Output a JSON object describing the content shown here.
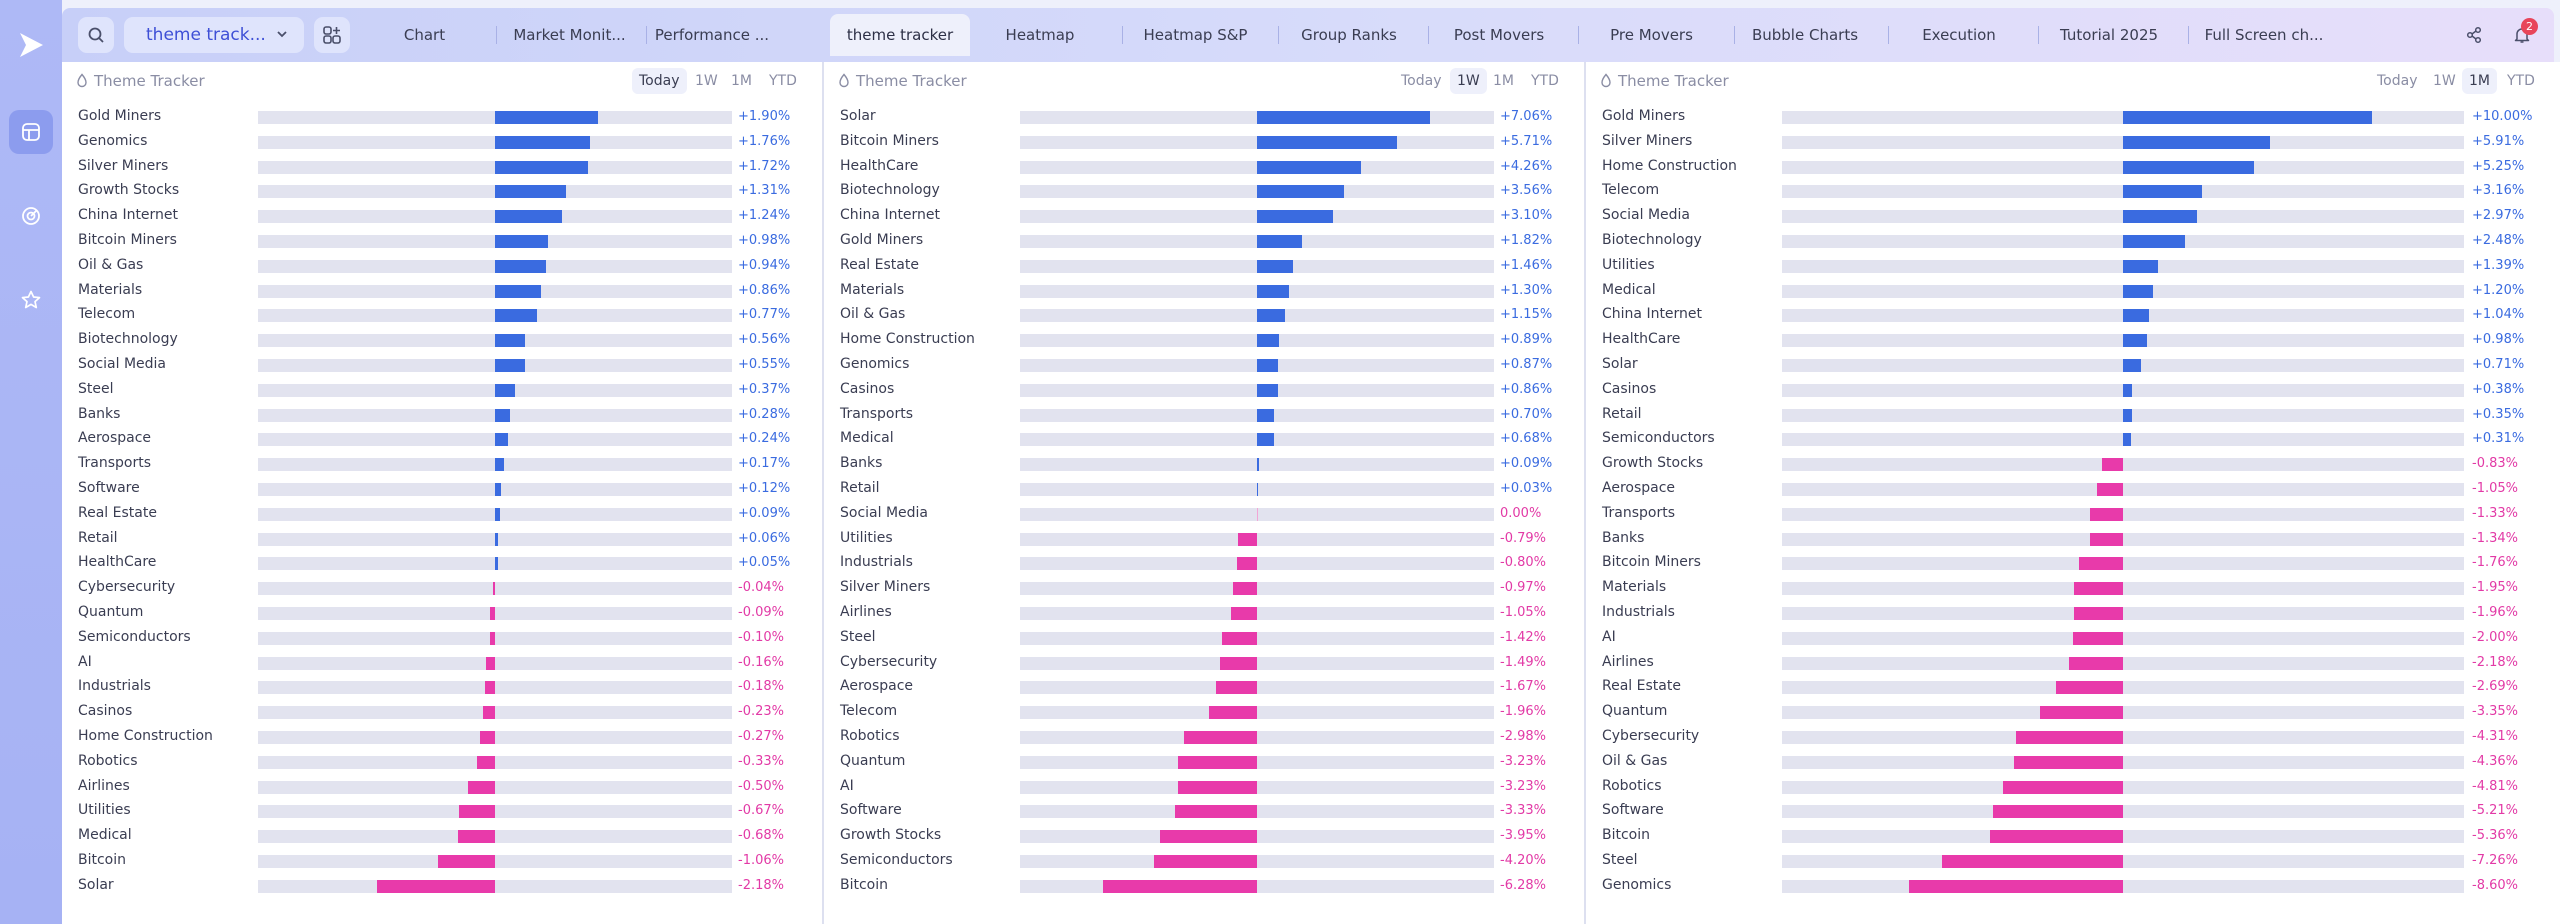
{
  "toolbar": {
    "workspace": "theme track...",
    "tabs": [
      "Chart",
      "Market Monit...",
      "Performance ...",
      "theme tracker",
      "Heatmap",
      "Heatmap S&P",
      "Group Ranks",
      "Post Movers",
      "Pre Movers",
      "Bubble Charts",
      "Execution",
      "Tutorial 2025",
      "Full Screen ch..."
    ],
    "active_tab": "theme tracker",
    "notification_count": "2",
    "accent": "#3e4fd6"
  },
  "colors": {
    "positive": "#3a6be0",
    "negative": "#e83aaa"
  },
  "panels": [
    {
      "title": "Theme Tracker",
      "periods": [
        "Today",
        "1W",
        "1M",
        "YTD"
      ],
      "selected_period": "Today",
      "scale": 3.2,
      "rows": [
        {
          "name": "Gold Miners",
          "value": 1.9,
          "label": "+1.90%"
        },
        {
          "name": "Genomics",
          "value": 1.76,
          "label": "+1.76%"
        },
        {
          "name": "Silver Miners",
          "value": 1.72,
          "label": "+1.72%"
        },
        {
          "name": "Growth Stocks",
          "value": 1.31,
          "label": "+1.31%"
        },
        {
          "name": "China Internet",
          "value": 1.24,
          "label": "+1.24%"
        },
        {
          "name": "Bitcoin Miners",
          "value": 0.98,
          "label": "+0.98%"
        },
        {
          "name": "Oil & Gas",
          "value": 0.94,
          "label": "+0.94%"
        },
        {
          "name": "Materials",
          "value": 0.86,
          "label": "+0.86%"
        },
        {
          "name": "Telecom",
          "value": 0.77,
          "label": "+0.77%"
        },
        {
          "name": "Biotechnology",
          "value": 0.56,
          "label": "+0.56%"
        },
        {
          "name": "Social Media",
          "value": 0.55,
          "label": "+0.55%"
        },
        {
          "name": "Steel",
          "value": 0.37,
          "label": "+0.37%"
        },
        {
          "name": "Banks",
          "value": 0.28,
          "label": "+0.28%"
        },
        {
          "name": "Aerospace",
          "value": 0.24,
          "label": "+0.24%"
        },
        {
          "name": "Transports",
          "value": 0.17,
          "label": "+0.17%"
        },
        {
          "name": "Software",
          "value": 0.12,
          "label": "+0.12%"
        },
        {
          "name": "Real Estate",
          "value": 0.09,
          "label": "+0.09%"
        },
        {
          "name": "Retail",
          "value": 0.06,
          "label": "+0.06%"
        },
        {
          "name": "HealthCare",
          "value": 0.05,
          "label": "+0.05%"
        },
        {
          "name": "Cybersecurity",
          "value": -0.04,
          "label": "-0.04%"
        },
        {
          "name": "Quantum",
          "value": -0.09,
          "label": "-0.09%"
        },
        {
          "name": "Semiconductors",
          "value": -0.1,
          "label": "-0.10%"
        },
        {
          "name": "AI",
          "value": -0.16,
          "label": "-0.16%"
        },
        {
          "name": "Industrials",
          "value": -0.18,
          "label": "-0.18%"
        },
        {
          "name": "Casinos",
          "value": -0.23,
          "label": "-0.23%"
        },
        {
          "name": "Home Construction",
          "value": -0.27,
          "label": "-0.27%"
        },
        {
          "name": "Robotics",
          "value": -0.33,
          "label": "-0.33%"
        },
        {
          "name": "Airlines",
          "value": -0.5,
          "label": "-0.50%"
        },
        {
          "name": "Utilities",
          "value": -0.67,
          "label": "-0.67%"
        },
        {
          "name": "Medical",
          "value": -0.68,
          "label": "-0.68%"
        },
        {
          "name": "Bitcoin",
          "value": -1.06,
          "label": "-1.06%"
        },
        {
          "name": "Solar",
          "value": -2.18,
          "label": "-2.18%"
        }
      ]
    },
    {
      "title": "Theme Tracker",
      "periods": [
        "Today",
        "1W",
        "1M",
        "YTD"
      ],
      "selected_period": "1W",
      "scale": 7.06,
      "rows": [
        {
          "name": "Solar",
          "value": 7.06,
          "label": "+7.06%"
        },
        {
          "name": "Bitcoin Miners",
          "value": 5.71,
          "label": "+5.71%"
        },
        {
          "name": "HealthCare",
          "value": 4.26,
          "label": "+4.26%"
        },
        {
          "name": "Biotechnology",
          "value": 3.56,
          "label": "+3.56%"
        },
        {
          "name": "China Internet",
          "value": 3.1,
          "label": "+3.10%"
        },
        {
          "name": "Gold Miners",
          "value": 1.82,
          "label": "+1.82%"
        },
        {
          "name": "Real Estate",
          "value": 1.46,
          "label": "+1.46%"
        },
        {
          "name": "Materials",
          "value": 1.3,
          "label": "+1.30%"
        },
        {
          "name": "Oil & Gas",
          "value": 1.15,
          "label": "+1.15%"
        },
        {
          "name": "Home Construction",
          "value": 0.89,
          "label": "+0.89%"
        },
        {
          "name": "Genomics",
          "value": 0.87,
          "label": "+0.87%"
        },
        {
          "name": "Casinos",
          "value": 0.86,
          "label": "+0.86%"
        },
        {
          "name": "Transports",
          "value": 0.7,
          "label": "+0.70%"
        },
        {
          "name": "Medical",
          "value": 0.68,
          "label": "+0.68%"
        },
        {
          "name": "Banks",
          "value": 0.09,
          "label": "+0.09%"
        },
        {
          "name": "Retail",
          "value": 0.03,
          "label": "+0.03%"
        },
        {
          "name": "Social Media",
          "value": 0.0,
          "label": "0.00%"
        },
        {
          "name": "Utilities",
          "value": -0.79,
          "label": "-0.79%"
        },
        {
          "name": "Industrials",
          "value": -0.8,
          "label": "-0.80%"
        },
        {
          "name": "Silver Miners",
          "value": -0.97,
          "label": "-0.97%"
        },
        {
          "name": "Airlines",
          "value": -1.05,
          "label": "-1.05%"
        },
        {
          "name": "Steel",
          "value": -1.42,
          "label": "-1.42%"
        },
        {
          "name": "Cybersecurity",
          "value": -1.49,
          "label": "-1.49%"
        },
        {
          "name": "Aerospace",
          "value": -1.67,
          "label": "-1.67%"
        },
        {
          "name": "Telecom",
          "value": -1.96,
          "label": "-1.96%"
        },
        {
          "name": "Robotics",
          "value": -2.98,
          "label": "-2.98%"
        },
        {
          "name": "Quantum",
          "value": -3.23,
          "label": "-3.23%"
        },
        {
          "name": "AI",
          "value": -3.23,
          "label": "-3.23%"
        },
        {
          "name": "Software",
          "value": -3.33,
          "label": "-3.33%"
        },
        {
          "name": "Growth Stocks",
          "value": -3.95,
          "label": "-3.95%"
        },
        {
          "name": "Semiconductors",
          "value": -4.2,
          "label": "-4.20%"
        },
        {
          "name": "Bitcoin",
          "value": -6.28,
          "label": "-6.28%"
        }
      ]
    },
    {
      "title": "Theme Tracker",
      "periods": [
        "Today",
        "1W",
        "1M",
        "YTD"
      ],
      "selected_period": "1M",
      "scale": 10.0,
      "rows": [
        {
          "name": "Gold Miners",
          "value": 10.0,
          "label": "+10.00%"
        },
        {
          "name": "Silver Miners",
          "value": 5.91,
          "label": "+5.91%"
        },
        {
          "name": "Home Construction",
          "value": 5.25,
          "label": "+5.25%"
        },
        {
          "name": "Telecom",
          "value": 3.16,
          "label": "+3.16%"
        },
        {
          "name": "Social Media",
          "value": 2.97,
          "label": "+2.97%"
        },
        {
          "name": "Biotechnology",
          "value": 2.48,
          "label": "+2.48%"
        },
        {
          "name": "Utilities",
          "value": 1.39,
          "label": "+1.39%"
        },
        {
          "name": "Medical",
          "value": 1.2,
          "label": "+1.20%"
        },
        {
          "name": "China Internet",
          "value": 1.04,
          "label": "+1.04%"
        },
        {
          "name": "HealthCare",
          "value": 0.98,
          "label": "+0.98%"
        },
        {
          "name": "Solar",
          "value": 0.71,
          "label": "+0.71%"
        },
        {
          "name": "Casinos",
          "value": 0.38,
          "label": "+0.38%"
        },
        {
          "name": "Retail",
          "value": 0.35,
          "label": "+0.35%"
        },
        {
          "name": "Semiconductors",
          "value": 0.31,
          "label": "+0.31%"
        },
        {
          "name": "Growth Stocks",
          "value": -0.83,
          "label": "-0.83%"
        },
        {
          "name": "Aerospace",
          "value": -1.05,
          "label": "-1.05%"
        },
        {
          "name": "Transports",
          "value": -1.33,
          "label": "-1.33%"
        },
        {
          "name": "Banks",
          "value": -1.34,
          "label": "-1.34%"
        },
        {
          "name": "Bitcoin Miners",
          "value": -1.76,
          "label": "-1.76%"
        },
        {
          "name": "Materials",
          "value": -1.95,
          "label": "-1.95%"
        },
        {
          "name": "Industrials",
          "value": -1.96,
          "label": "-1.96%"
        },
        {
          "name": "AI",
          "value": -2.0,
          "label": "-2.00%"
        },
        {
          "name": "Airlines",
          "value": -2.18,
          "label": "-2.18%"
        },
        {
          "name": "Real Estate",
          "value": -2.69,
          "label": "-2.69%"
        },
        {
          "name": "Quantum",
          "value": -3.35,
          "label": "-3.35%"
        },
        {
          "name": "Cybersecurity",
          "value": -4.31,
          "label": "-4.31%"
        },
        {
          "name": "Oil & Gas",
          "value": -4.36,
          "label": "-4.36%"
        },
        {
          "name": "Robotics",
          "value": -4.81,
          "label": "-4.81%"
        },
        {
          "name": "Software",
          "value": -5.21,
          "label": "-5.21%"
        },
        {
          "name": "Bitcoin",
          "value": -5.36,
          "label": "-5.36%"
        },
        {
          "name": "Steel",
          "value": -7.26,
          "label": "-7.26%"
        },
        {
          "name": "Genomics",
          "value": -8.6,
          "label": "-8.60%"
        }
      ]
    }
  ]
}
